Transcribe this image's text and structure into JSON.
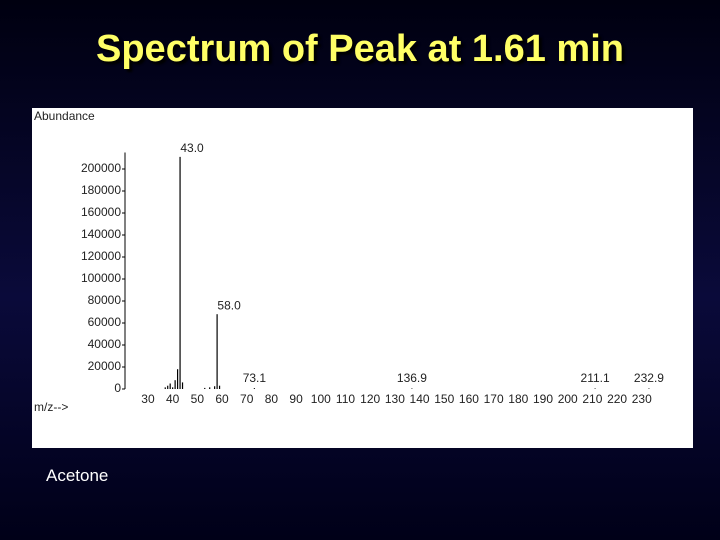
{
  "chart_data": {
    "type": "spectrum",
    "title": "Spectrum of Peak at 1.61 min",
    "y_label": "Abundance",
    "x_label": "m/z-->",
    "caption": "Acetone",
    "x": [
      37,
      38,
      39,
      40,
      41,
      42,
      43,
      44,
      53,
      55,
      57,
      58,
      59,
      73.1,
      136.9,
      211.1,
      232.9
    ],
    "values": [
      1500,
      3000,
      5000,
      1500,
      8000,
      18000,
      211000,
      6000,
      1000,
      1500,
      2500,
      68000,
      3000,
      800,
      500,
      500,
      500
    ],
    "peak_labels": [
      null,
      null,
      null,
      null,
      null,
      null,
      "43.0",
      null,
      null,
      null,
      null,
      "58.0",
      null,
      "73.1",
      "136.9",
      "211.1",
      "232.9"
    ],
    "color": "#000000",
    "xlim": [
      20.7,
      239
    ],
    "xticks": [
      30,
      40,
      50,
      60,
      70,
      80,
      90,
      100,
      110,
      120,
      130,
      140,
      150,
      160,
      170,
      180,
      190,
      200,
      210,
      220,
      230
    ],
    "ylim": [
      0,
      215000
    ],
    "yticks": [
      0,
      20000,
      40000,
      60000,
      80000,
      100000,
      120000,
      140000,
      160000,
      180000,
      200000
    ]
  }
}
